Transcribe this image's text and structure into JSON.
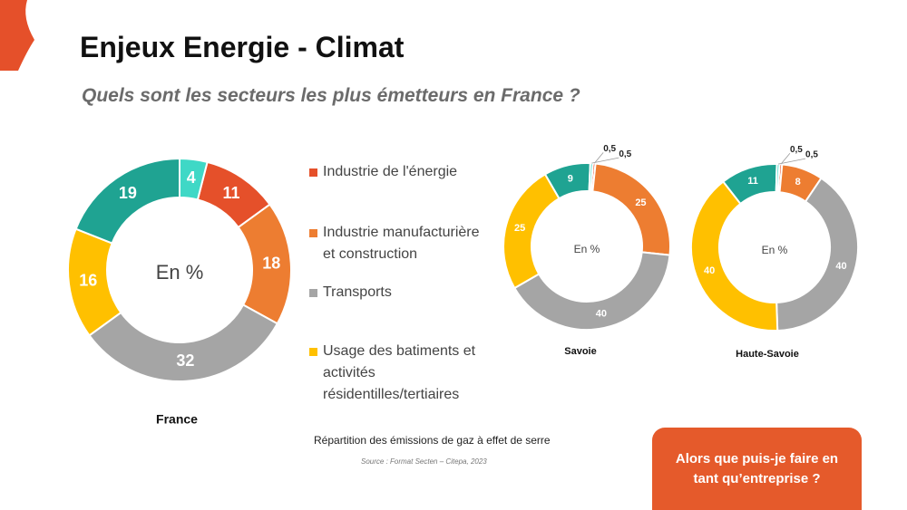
{
  "title": "Enjeux Energie - Climat",
  "subtitle": "Quels sont les secteurs les plus émetteurs en France ?",
  "caption": "Répartition des émissions de gaz à effet de serre",
  "source": "Source : Format Secten – Citepa, 2023",
  "button": "Alors que puis-je faire en tant qu’entreprise ?",
  "chart_data": [
    {
      "type": "donut",
      "title": "France",
      "center_label": "En %",
      "categories": [
        "Industrie de l'énergie",
        "Industrie manufacturière et construction",
        "Transports",
        "Usage des batiments et activités résidentilles/tertiaires",
        null,
        null
      ],
      "values": [
        11,
        18,
        32,
        16,
        19,
        4
      ],
      "colors": [
        "#e5502a",
        "#ed7d31",
        "#a5a5a5",
        "#ffc000",
        "#1fa392",
        "#3fd8c6"
      ]
    },
    {
      "type": "donut",
      "title": "Savoie",
      "center_label": "En %",
      "categories": [
        "Industrie de l'énergie",
        "Industrie manufacturière et construction",
        "Transports",
        "Usage des batiments et activités résidentilles/tertiaires",
        null,
        null
      ],
      "values": [
        0.5,
        25,
        40,
        25,
        9,
        0.5
      ],
      "value_labels": [
        "0,5",
        "25",
        "40",
        "25",
        "9",
        "0,5"
      ],
      "colors": [
        "#e5502a",
        "#ed7d31",
        "#a5a5a5",
        "#ffc000",
        "#1fa392",
        "#3fd8c6"
      ]
    },
    {
      "type": "donut",
      "title": "Haute-Savoie",
      "center_label": "En %",
      "categories": [
        "Industrie de l'énergie",
        "Industrie manufacturière et construction",
        "Transports",
        "Usage des batiments et activités résidentilles/tertiaires",
        null,
        null
      ],
      "values": [
        0.5,
        8,
        40,
        40,
        11,
        0.5
      ],
      "value_labels": [
        "0,5",
        "8",
        "40",
        "40",
        "11",
        "0,5"
      ],
      "colors": [
        "#e5502a",
        "#ed7d31",
        "#a5a5a5",
        "#ffc000",
        "#1fa392",
        "#3fd8c6"
      ]
    }
  ]
}
